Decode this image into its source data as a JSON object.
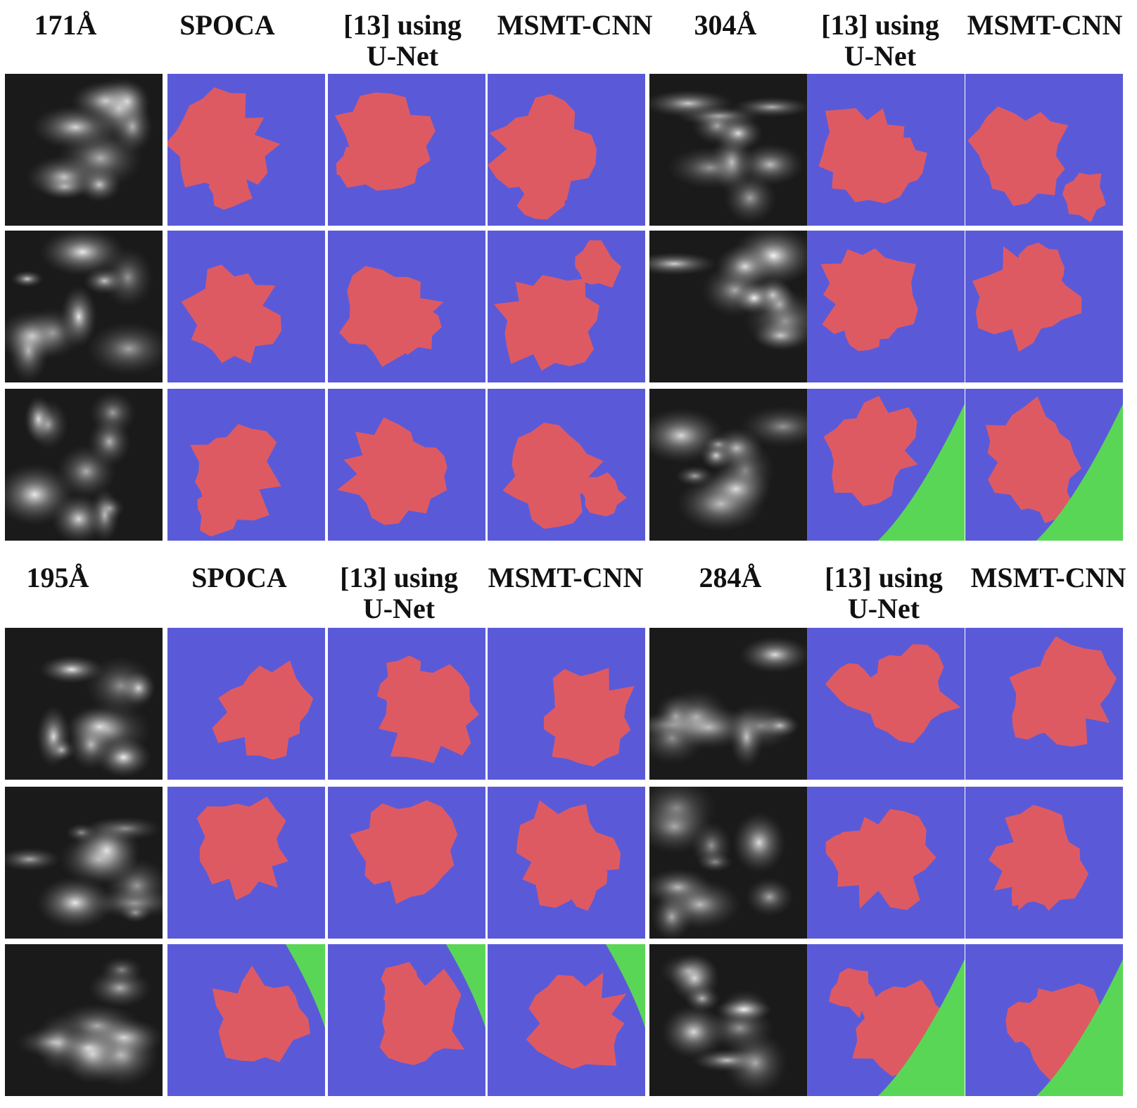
{
  "panels": [
    {
      "headers": [
        "171Å",
        "SPOCA",
        "[13] using U-Net",
        "MSMT-CNN",
        "304Å",
        "[13] using U-Net",
        "MSMT-CNN"
      ]
    },
    {
      "headers": [
        "195Å",
        "SPOCA",
        "[13] using U-Net",
        "MSMT-CNN",
        "284Å",
        "[13] using U-Net",
        "MSMT-CNN"
      ]
    }
  ]
}
